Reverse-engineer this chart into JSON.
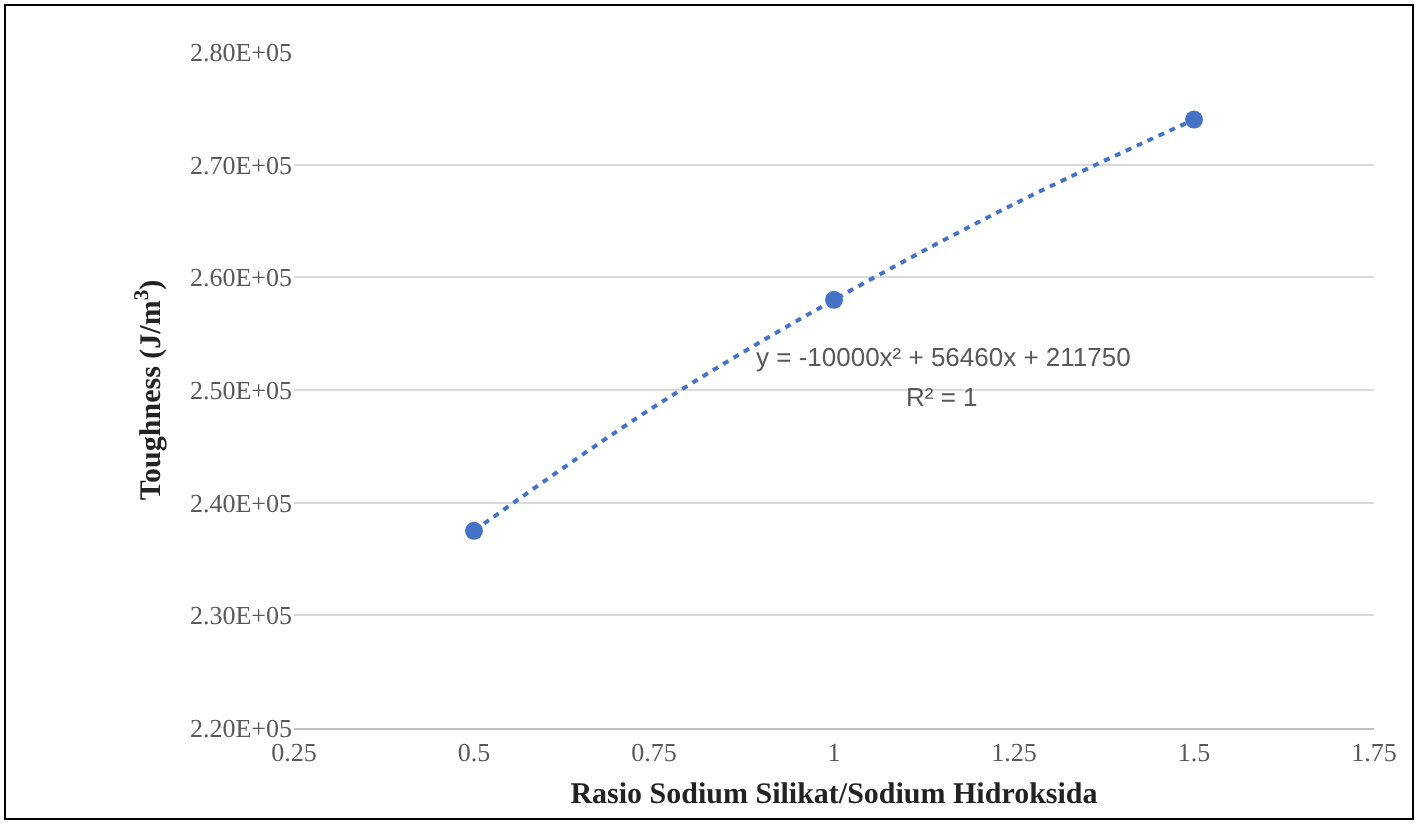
{
  "chart_data": {
    "type": "scatter",
    "xlabel": "Rasio Sodium Silikat/Sodium Hidroksida",
    "ylabel": "Toughness (J/m$^{3}$)",
    "x": [
      0.5,
      1,
      1.5
    ],
    "series": [
      {
        "color": "#4472c4",
        "values": [
          237500,
          258000,
          274000
        ],
        "marker": "circle"
      },
      {
        "type": "line",
        "color": "#4472c4",
        "x": [
          0.5,
          0.75,
          1,
          1.25,
          1.5
        ],
        "values": [
          237500,
          248500,
          258000,
          266500,
          274000
        ],
        "line_style": "dotted",
        "marker": "none"
      }
    ],
    "xlim": [
      0.25,
      1.75
    ],
    "xticks": [
      0.25,
      0.5,
      0.75,
      1,
      1.25,
      1.5,
      1.75
    ],
    "ylim": [
      220000,
      280000
    ],
    "yticks": [
      {
        "value": 220000,
        "label": "2.20E+05"
      },
      {
        "value": 230000,
        "label": "2.30E+05"
      },
      {
        "value": 240000,
        "label": "2.40E+05"
      },
      {
        "value": 250000,
        "label": "2.50E+05"
      },
      {
        "value": 260000,
        "label": "2.60E+05"
      },
      {
        "value": 270000,
        "label": "2.70E+05"
      },
      {
        "value": 280000,
        "label": "2.80E+05"
      }
    ],
    "grid": "y",
    "annotations": [
      "y = -10000x² + 56460x + 211750",
      "R² = 1"
    ]
  }
}
